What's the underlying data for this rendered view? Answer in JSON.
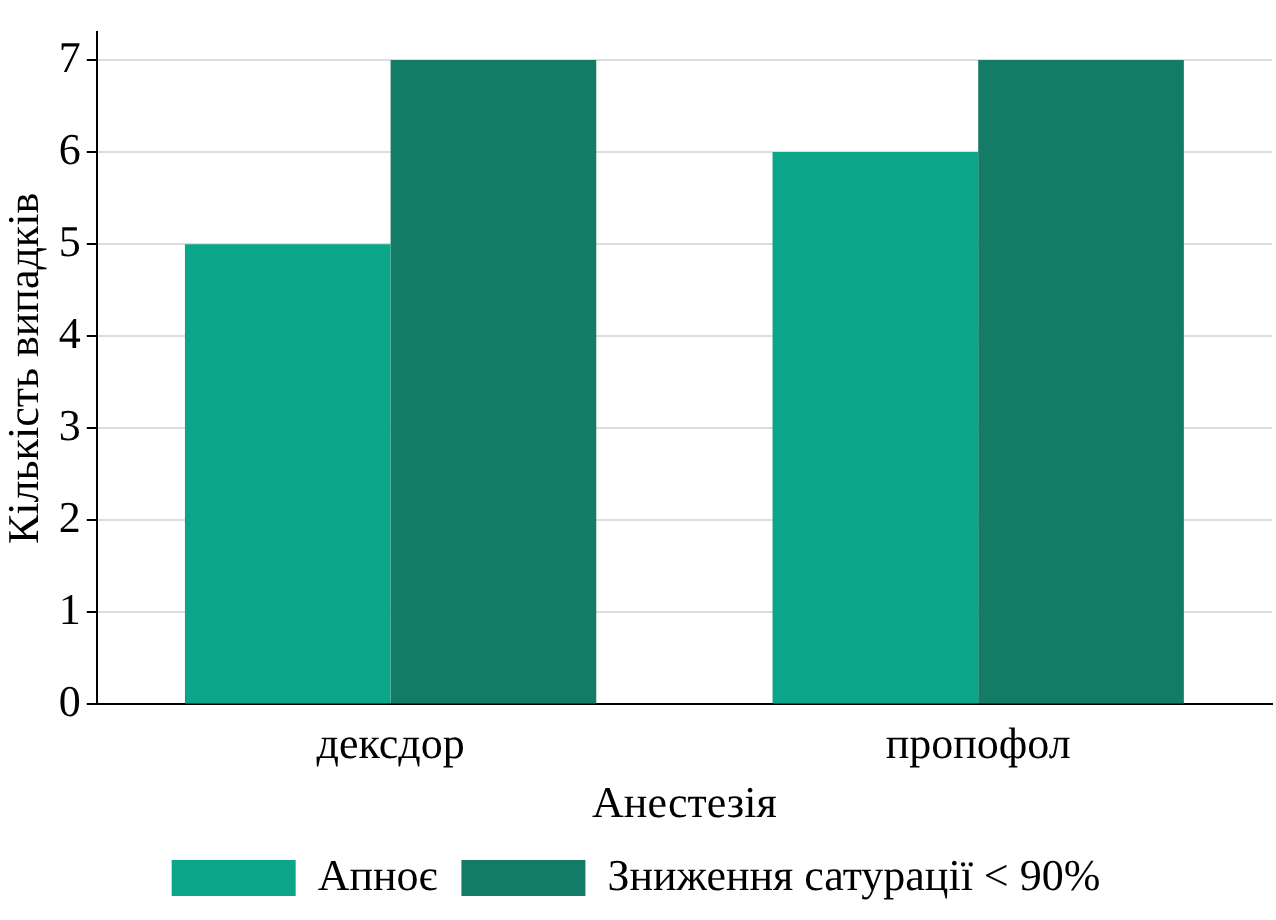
{
  "chart_data": {
    "type": "bar",
    "xlabel": "Анестезія",
    "ylabel": "Кількість випадків",
    "categories": [
      "дексдор",
      "пропофол"
    ],
    "series": [
      {
        "name": "Апноє",
        "color": "#0ba58a",
        "values": [
          5,
          6
        ]
      },
      {
        "name": "Зниження сатурації < 90%",
        "color": "#147c66",
        "values": [
          7,
          7
        ]
      }
    ],
    "ylim": [
      0,
      7.3
    ],
    "yticks": [
      0,
      1,
      2,
      3,
      4,
      5,
      6,
      7
    ],
    "grid": "y",
    "legend": "bottom"
  }
}
